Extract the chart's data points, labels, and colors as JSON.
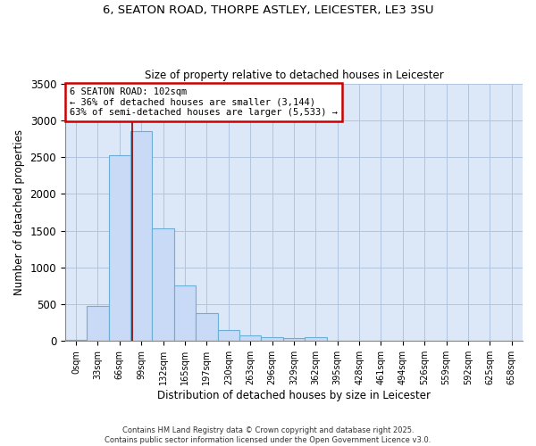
{
  "title_line1": "6, SEATON ROAD, THORPE ASTLEY, LEICESTER, LE3 3SU",
  "title_line2": "Size of property relative to detached houses in Leicester",
  "xlabel": "Distribution of detached houses by size in Leicester",
  "ylabel": "Number of detached properties",
  "bar_labels": [
    "0sqm",
    "33sqm",
    "66sqm",
    "99sqm",
    "132sqm",
    "165sqm",
    "197sqm",
    "230sqm",
    "263sqm",
    "296sqm",
    "329sqm",
    "362sqm",
    "395sqm",
    "428sqm",
    "461sqm",
    "494sqm",
    "526sqm",
    "559sqm",
    "592sqm",
    "625sqm",
    "658sqm"
  ],
  "bar_values": [
    20,
    480,
    2520,
    2850,
    1530,
    750,
    380,
    150,
    80,
    50,
    40,
    50,
    5,
    5,
    5,
    0,
    0,
    0,
    0,
    0,
    0
  ],
  "bar_color": "#c8daf5",
  "bar_edge_color": "#6baed6",
  "property_label": "6 SEATON ROAD: 102sqm",
  "annotation_line1": "← 36% of detached houses are smaller (3,144)",
  "annotation_line2": "63% of semi-detached houses are larger (5,533) →",
  "vline_color": "#8b0000",
  "annotation_box_edge": "#cc0000",
  "grid_color": "#b0c4de",
  "background_color": "#ffffff",
  "chart_bg_color": "#dce8f8",
  "ylim": [
    0,
    3500
  ],
  "footer_line1": "Contains HM Land Registry data © Crown copyright and database right 2025.",
  "footer_line2": "Contains public sector information licensed under the Open Government Licence v3.0."
}
